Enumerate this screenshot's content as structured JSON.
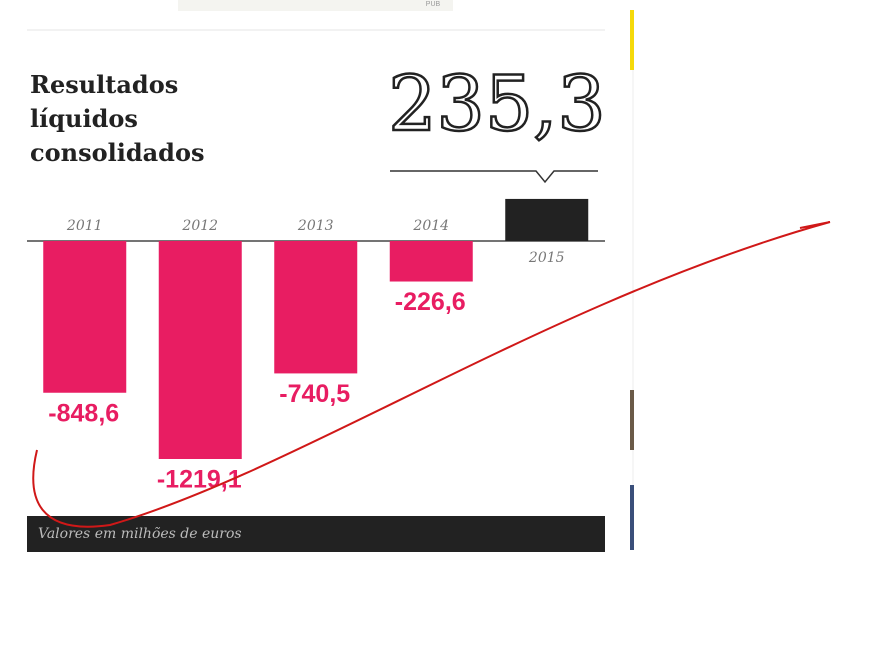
{
  "ad_label": "PUB",
  "chart_data": {
    "type": "bar",
    "title": "Resultados líquidos consolidados",
    "categories": [
      "2011",
      "2012",
      "2013",
      "2014",
      "2015"
    ],
    "values": [
      -848.6,
      -1219.1,
      -740.5,
      -226.6,
      235.3
    ],
    "value_labels": [
      "-848,6",
      "-1219,1",
      "-740,5",
      "-226,6",
      "235,3"
    ],
    "colors": [
      "#e81d62",
      "#e81d62",
      "#e81d62",
      "#e81d62",
      "#222222"
    ],
    "note": "Valores em milhões de euros"
  }
}
